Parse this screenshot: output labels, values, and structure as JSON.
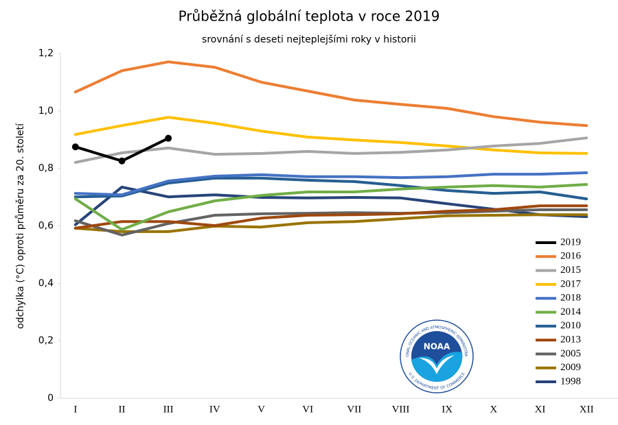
{
  "chart_data": {
    "type": "line",
    "title": "Průběžná globální teplota v roce 2019",
    "subtitle": "srovnání s deseti nejteplejšími roky v historii",
    "y_label": "odchylka (°C) oproti průměru za 20. století",
    "categories": [
      "I",
      "II",
      "III",
      "IV",
      "V",
      "VI",
      "VII",
      "VIII",
      "IX",
      "X",
      "XI",
      "XII"
    ],
    "ylim": [
      0,
      1.2
    ],
    "yticks": [
      0,
      {
        "value": 0.2,
        "label": "0,2"
      },
      {
        "value": 0.4,
        "label": "0,4"
      },
      {
        "value": 0.6,
        "label": "0,6"
      },
      {
        "value": 0.8,
        "label": "0,8"
      },
      {
        "value": 1.0,
        "label": "1,0"
      },
      {
        "value": 1.2,
        "label": "1,2"
      }
    ],
    "grid": false,
    "legend": "lower right",
    "logo": {
      "name": "NOAA",
      "outer_top": "NATIONAL OCEANIC AND ATMOSPHERIC ADMINISTRATION",
      "outer_bottom": "U.S. DEPARTMENT OF COMMERCE"
    },
    "series": [
      {
        "name": "2019",
        "color": "#000000",
        "marker": "circle",
        "values": [
          0.875,
          0.826,
          0.905,
          null,
          null,
          null,
          null,
          null,
          null,
          null,
          null,
          null
        ]
      },
      {
        "name": "2016",
        "color": "#ed7d31",
        "values": [
          1.066,
          1.14,
          1.171,
          1.152,
          1.1,
          1.069,
          1.038,
          1.023,
          1.009,
          0.98,
          0.961,
          0.949
        ]
      },
      {
        "name": "2015",
        "color": "#a5a5a5",
        "values": [
          0.821,
          0.854,
          0.871,
          0.849,
          0.852,
          0.859,
          0.852,
          0.856,
          0.864,
          0.878,
          0.887,
          0.906
        ]
      },
      {
        "name": "2017",
        "color": "#ffc000",
        "values": [
          0.918,
          0.949,
          0.978,
          0.957,
          0.93,
          0.909,
          0.899,
          0.89,
          0.878,
          0.864,
          0.854,
          0.852
        ]
      },
      {
        "name": "2018",
        "color": "#4472c4",
        "values": [
          0.713,
          0.708,
          0.756,
          0.773,
          0.778,
          0.771,
          0.771,
          0.768,
          0.771,
          0.78,
          0.78,
          0.785
        ]
      },
      {
        "name": "2014",
        "color": "#70ad47",
        "values": [
          0.694,
          0.587,
          0.649,
          0.687,
          0.706,
          0.718,
          0.718,
          0.728,
          0.735,
          0.74,
          0.735,
          0.744
        ]
      },
      {
        "name": "2010",
        "color": "#255e91",
        "values": [
          0.701,
          0.704,
          0.749,
          0.766,
          0.766,
          0.759,
          0.754,
          0.74,
          0.723,
          0.713,
          0.718,
          0.694
        ]
      },
      {
        "name": "2013",
        "color": "#9e480e",
        "values": [
          0.592,
          0.615,
          0.615,
          0.601,
          0.627,
          0.637,
          0.639,
          0.642,
          0.651,
          0.656,
          0.67,
          0.67
        ]
      },
      {
        "name": "2005",
        "color": "#636363",
        "values": [
          0.618,
          0.568,
          0.608,
          0.637,
          0.642,
          0.644,
          0.646,
          0.644,
          0.646,
          0.651,
          0.656,
          0.656
        ]
      },
      {
        "name": "2009",
        "color": "#997300",
        "values": [
          0.592,
          0.58,
          0.58,
          0.599,
          0.596,
          0.611,
          0.615,
          0.625,
          0.635,
          0.637,
          0.639,
          0.639
        ]
      },
      {
        "name": "1998",
        "color": "#264478",
        "values": [
          0.604,
          0.735,
          0.701,
          0.708,
          0.699,
          0.697,
          0.699,
          0.697,
          0.677,
          0.658,
          0.639,
          0.632
        ]
      }
    ]
  }
}
